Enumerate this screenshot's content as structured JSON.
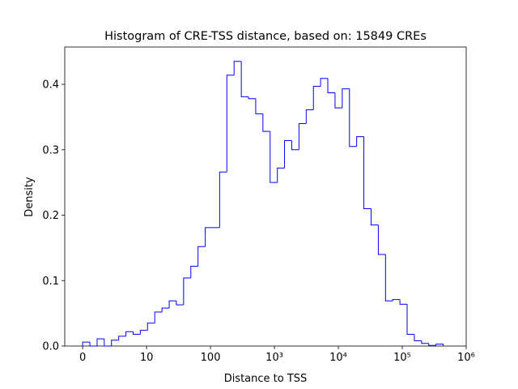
{
  "chart_data": {
    "type": "histogram",
    "title": "Histogram of CRE-TSS distance, based on: 15849 CREs",
    "x_label": "Distance to TSS",
    "y_label": "Density",
    "color": "#0000ff",
    "bins": [
      0,
      0.113,
      0.226,
      0.338,
      0.451,
      0.564,
      0.677,
      0.79,
      0.902,
      1.015,
      1.128,
      1.241,
      1.354,
      1.466,
      1.579,
      1.692,
      1.805,
      1.918,
      2.03,
      2.143,
      2.256,
      2.369,
      2.482,
      2.594,
      2.707,
      2.82,
      2.933,
      3.046,
      3.158,
      3.271,
      3.384,
      3.497,
      3.61,
      3.722,
      3.835,
      3.948,
      4.061,
      4.174,
      4.286,
      4.399,
      4.512,
      4.625,
      4.738,
      4.85,
      4.963,
      5.076,
      5.189,
      5.302,
      5.414,
      5.527,
      5.64
    ],
    "values": [
      0.006,
      0,
      0.011,
      0,
      0.009,
      0.015,
      0.022,
      0.018,
      0.024,
      0.035,
      0.052,
      0.058,
      0.069,
      0.063,
      0.104,
      0.122,
      0.152,
      0.181,
      0.181,
      0.266,
      0.414,
      0.435,
      0.381,
      0.378,
      0.355,
      0.328,
      0.25,
      0.272,
      0.314,
      0.3,
      0.34,
      0.361,
      0.397,
      0.409,
      0.387,
      0.364,
      0.393,
      0.305,
      0.32,
      0.21,
      0.185,
      0.14,
      0.069,
      0.071,
      0.064,
      0.018,
      0.008,
      0.004,
      0.001,
      0.003
    ],
    "xlim": [
      -0.28,
      6.0
    ],
    "xticks": [
      0,
      {
        "value": 1,
        "label": "10"
      },
      {
        "value": 2,
        "label": "100"
      },
      {
        "value": 3,
        "label": "10³"
      },
      {
        "value": 4,
        "label": "10⁴"
      },
      {
        "value": 5,
        "label": "10⁵"
      },
      {
        "value": 6,
        "label": "10⁶"
      }
    ],
    "ylim": [
      0,
      0.457
    ],
    "yticks": [
      {
        "value": 0,
        "label": "0.0"
      },
      0.1,
      0.2,
      0.3,
      0.4
    ]
  }
}
